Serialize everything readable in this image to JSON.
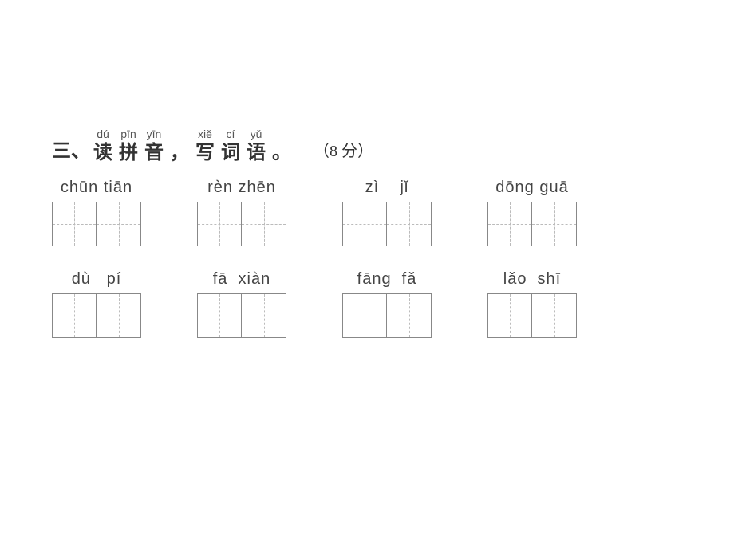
{
  "heading": {
    "number": "三、",
    "chars": [
      {
        "pinyin": "dú",
        "hanzi": "读"
      },
      {
        "pinyin": "pīn",
        "hanzi": "拼"
      },
      {
        "pinyin": "yīn",
        "hanzi": "音"
      },
      {
        "pinyin": "",
        "hanzi": "，"
      },
      {
        "pinyin": "xiě",
        "hanzi": "写"
      },
      {
        "pinyin": "cí",
        "hanzi": "词"
      },
      {
        "pinyin": "yǔ",
        "hanzi": "语"
      },
      {
        "pinyin": "",
        "hanzi": "。"
      }
    ],
    "points": "（8 分）"
  },
  "exercises": {
    "row1": {
      "w1": "chūn tiān",
      "w2": "rèn zhēn",
      "w3": "zì    jǐ",
      "w4": "dōng guā"
    },
    "row2": {
      "w1": "dù   pí",
      "w2": "fā  xiàn",
      "w3": "fāng  fǎ",
      "w4": "lǎo  shī"
    }
  }
}
